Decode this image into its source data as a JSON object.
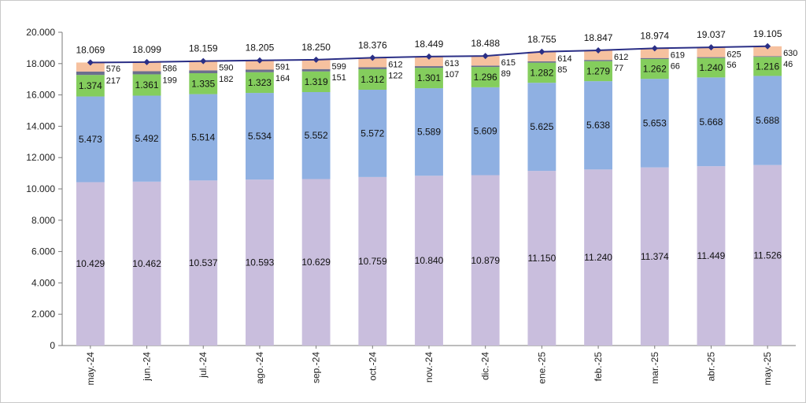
{
  "chart_data": {
    "type": "bar",
    "stacked": true,
    "categories": [
      "may.-24",
      "jun.-24",
      "jul.-24",
      "ago.-24",
      "sep.-24",
      "oct.-24",
      "nov.-24",
      "dic.-24",
      "ene.-25",
      "feb.-25",
      "mar.-25",
      "abr.-25",
      "may.-25"
    ],
    "ylim": [
      0,
      20000
    ],
    "yticks": [
      {
        "value": 0,
        "label": "0"
      },
      {
        "value": 2000,
        "label": "2.000"
      },
      {
        "value": 4000,
        "label": "4.000"
      },
      {
        "value": 6000,
        "label": "6.000"
      },
      {
        "value": 8000,
        "label": "8.000"
      },
      {
        "value": 10000,
        "label": "10.000"
      },
      {
        "value": 12000,
        "label": "12.000"
      },
      {
        "value": 14000,
        "label": "14.000"
      },
      {
        "value": 16000,
        "label": "16.000"
      },
      {
        "value": 18000,
        "label": "18.000"
      },
      {
        "value": 20000,
        "label": "20.000"
      }
    ],
    "series": [
      {
        "color": "#c9bedd",
        "values": [
          10429,
          10462,
          10537,
          10593,
          10629,
          10759,
          10840,
          10879,
          11150,
          11240,
          11374,
          11449,
          11526
        ],
        "labels": [
          "10.429",
          "10.462",
          "10.537",
          "10.593",
          "10.629",
          "10.759",
          "10.840",
          "10.879",
          "11.150",
          "11.240",
          "11.374",
          "11.449",
          "11.526"
        ]
      },
      {
        "color": "#8fb0e2",
        "values": [
          5473,
          5492,
          5514,
          5534,
          5552,
          5572,
          5589,
          5609,
          5625,
          5638,
          5653,
          5668,
          5688
        ],
        "labels": [
          "5.473",
          "5.492",
          "5.514",
          "5.534",
          "5.552",
          "5.572",
          "5.589",
          "5.609",
          "5.625",
          "5.638",
          "5.653",
          "5.668",
          "5.688"
        ]
      },
      {
        "color": "#84cd5d",
        "values": [
          1374,
          1361,
          1335,
          1323,
          1319,
          1312,
          1301,
          1296,
          1282,
          1279,
          1262,
          1240,
          1216
        ],
        "labels": [
          "1.374",
          "1.361",
          "1.335",
          "1.323",
          "1.319",
          "1.312",
          "1.301",
          "1.296",
          "1.282",
          "1.279",
          "1.262",
          "1.240",
          "1.216"
        ]
      },
      {
        "color": "#6b6f8d",
        "values": [
          217,
          199,
          182,
          164,
          151,
          122,
          107,
          89,
          85,
          77,
          66,
          56,
          46
        ],
        "labels": [
          "217",
          "199",
          "182",
          "164",
          "151",
          "122",
          "107",
          "89",
          "85",
          "77",
          "66",
          "56",
          "46"
        ]
      },
      {
        "color": "#f6c19f",
        "values": [
          576,
          586,
          590,
          591,
          599,
          612,
          613,
          615,
          614,
          612,
          619,
          625,
          630
        ],
        "labels": [
          "576",
          "586",
          "590",
          "591",
          "599",
          "612",
          "613",
          "615",
          "614",
          "612",
          "619",
          "625",
          "630"
        ]
      }
    ],
    "totals": {
      "type": "line",
      "color": "#2b2f86",
      "values": [
        18069,
        18099,
        18159,
        18205,
        18250,
        18376,
        18449,
        18488,
        18755,
        18847,
        18974,
        19037,
        19105
      ],
      "labels": [
        "18.069",
        "18.099",
        "18.159",
        "18.205",
        "18.250",
        "18.376",
        "18.449",
        "18.488",
        "18.755",
        "18.847",
        "18.974",
        "19.037",
        "19.105"
      ]
    },
    "grid": false,
    "legend": "none"
  }
}
